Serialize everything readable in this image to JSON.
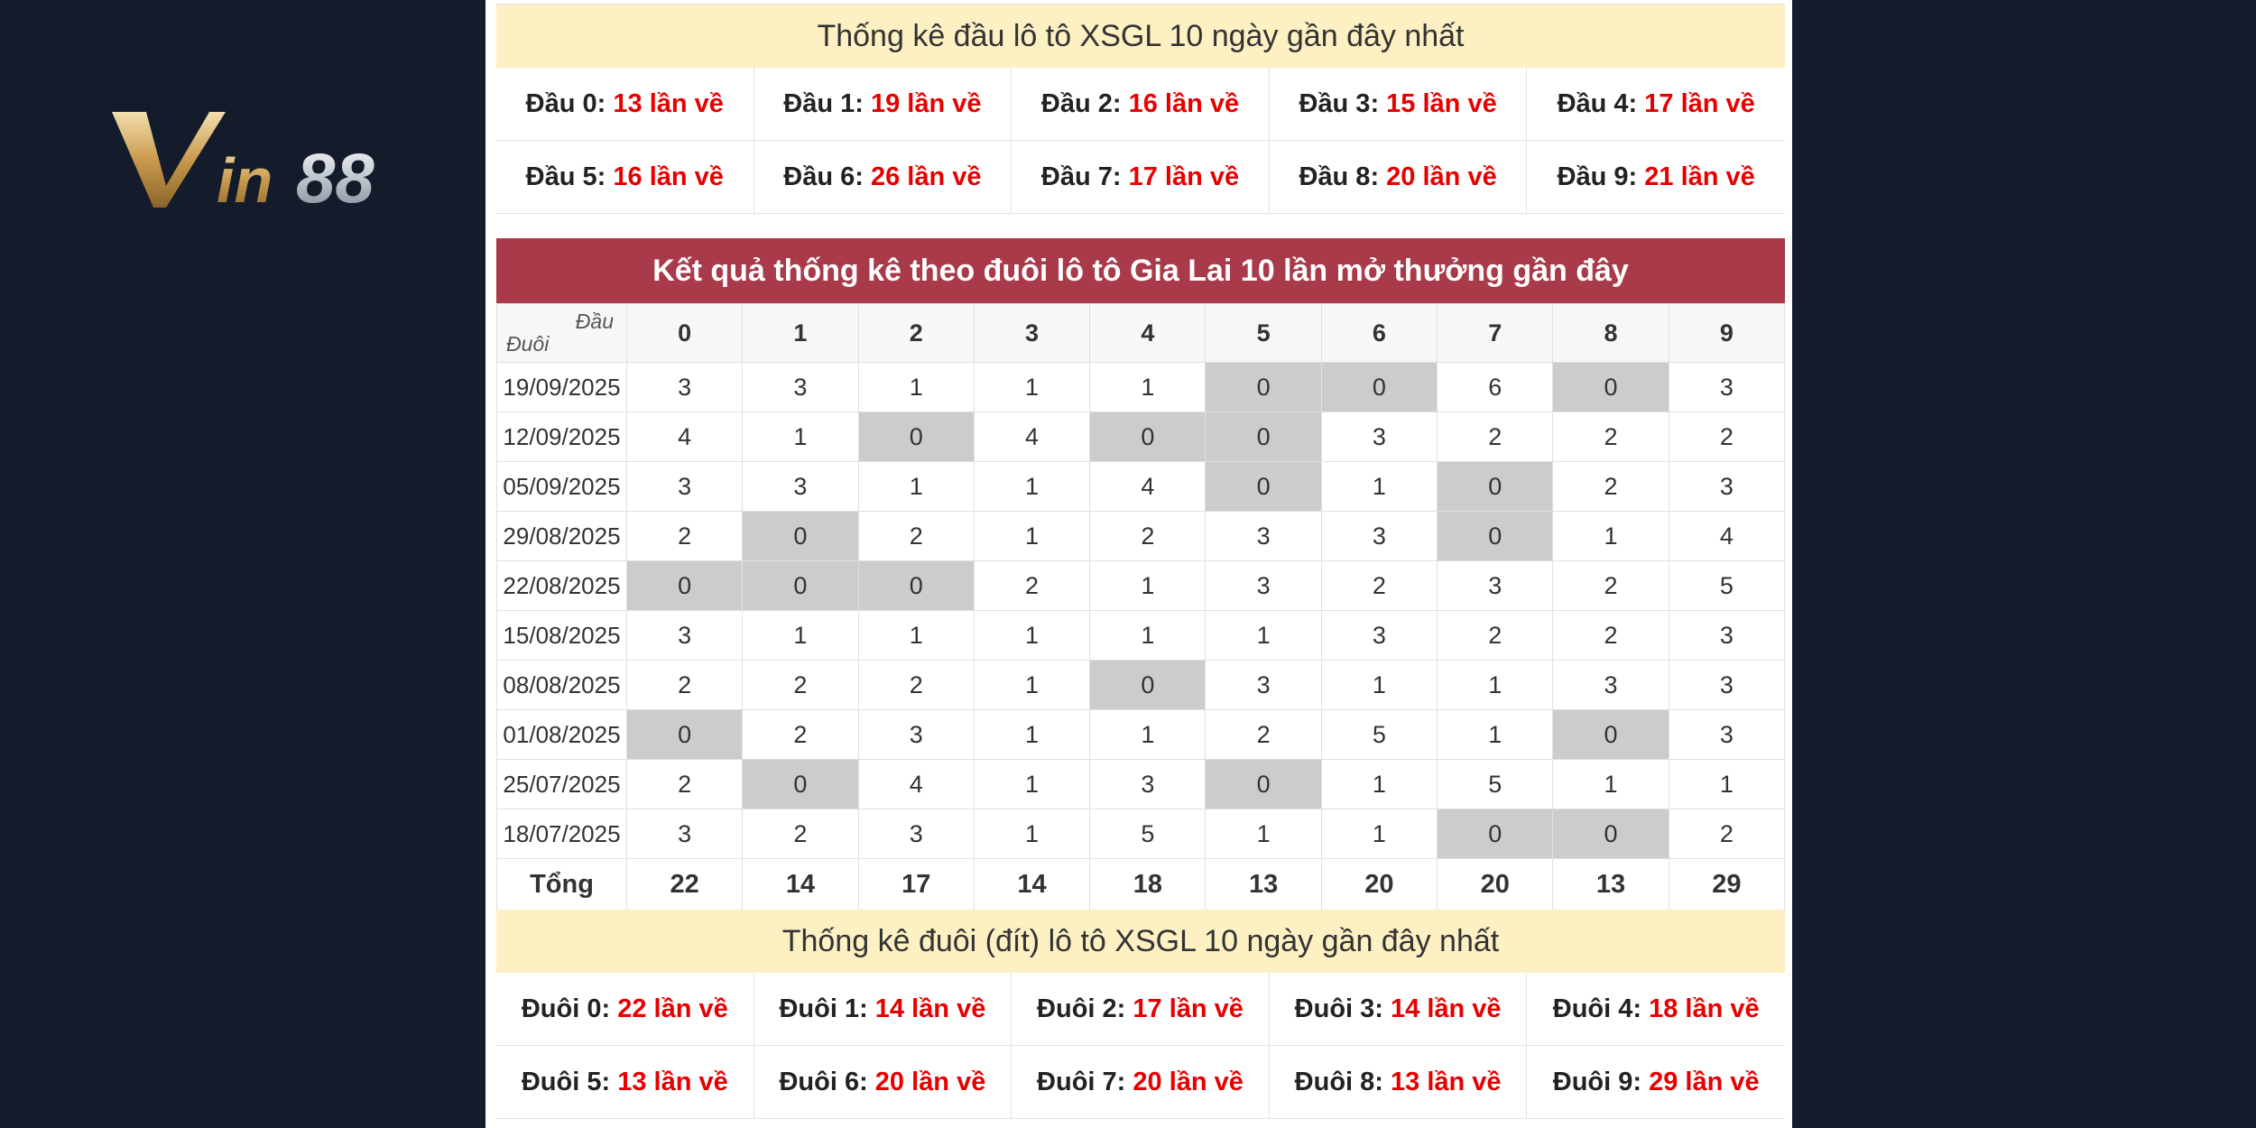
{
  "logo": {
    "text": "Vin88"
  },
  "dau_summary": {
    "caption": "Thống kê đầu lô tô XSGL 10 ngày gần đây nhất",
    "items": [
      {
        "label": "Đầu 0:",
        "value": "13 lần về"
      },
      {
        "label": "Đầu 1:",
        "value": "19 lần về"
      },
      {
        "label": "Đầu 2:",
        "value": "16 lần về"
      },
      {
        "label": "Đầu 3:",
        "value": "15 lần về"
      },
      {
        "label": "Đầu 4:",
        "value": "17 lần về"
      },
      {
        "label": "Đầu 5:",
        "value": "16 lần về"
      },
      {
        "label": "Đầu 6:",
        "value": "26 lần về"
      },
      {
        "label": "Đầu 7:",
        "value": "17 lần về"
      },
      {
        "label": "Đầu 8:",
        "value": "20 lần về"
      },
      {
        "label": "Đầu 9:",
        "value": "21 lần về"
      }
    ]
  },
  "duoi_table": {
    "title": "Kết quả thống kê theo đuôi lô tô Gia Lai 10 lần mở thưởng gần đây",
    "corner_top": "Đầu",
    "corner_bottom": "Đuôi",
    "columns": [
      "0",
      "1",
      "2",
      "3",
      "4",
      "5",
      "6",
      "7",
      "8",
      "9"
    ],
    "rows": [
      {
        "date": "19/09/2025",
        "values": [
          3,
          3,
          1,
          1,
          1,
          0,
          0,
          6,
          0,
          3
        ]
      },
      {
        "date": "12/09/2025",
        "values": [
          4,
          1,
          0,
          4,
          0,
          0,
          3,
          2,
          2,
          2
        ]
      },
      {
        "date": "05/09/2025",
        "values": [
          3,
          3,
          1,
          1,
          4,
          0,
          1,
          0,
          2,
          3
        ]
      },
      {
        "date": "29/08/2025",
        "values": [
          2,
          0,
          2,
          1,
          2,
          3,
          3,
          0,
          1,
          4
        ]
      },
      {
        "date": "22/08/2025",
        "values": [
          0,
          0,
          0,
          2,
          1,
          3,
          2,
          3,
          2,
          5
        ]
      },
      {
        "date": "15/08/2025",
        "values": [
          3,
          1,
          1,
          1,
          1,
          1,
          3,
          2,
          2,
          3
        ]
      },
      {
        "date": "08/08/2025",
        "values": [
          2,
          2,
          2,
          1,
          0,
          3,
          1,
          1,
          3,
          3
        ]
      },
      {
        "date": "01/08/2025",
        "values": [
          0,
          2,
          3,
          1,
          1,
          2,
          5,
          1,
          0,
          3
        ]
      },
      {
        "date": "25/07/2025",
        "values": [
          2,
          0,
          4,
          1,
          3,
          0,
          1,
          5,
          1,
          1
        ]
      },
      {
        "date": "18/07/2025",
        "values": [
          3,
          2,
          3,
          1,
          5,
          1,
          1,
          0,
          0,
          2
        ]
      }
    ],
    "total_label": "Tổng",
    "totals": [
      22,
      14,
      17,
      14,
      18,
      13,
      20,
      20,
      13,
      29
    ],
    "zero_highlight_color": "#cccccc",
    "header_color": "#a83a4a"
  },
  "duoi_summary": {
    "caption": "Thống kê đuôi (đít) lô tô XSGL 10 ngày gần đây nhất",
    "items": [
      {
        "label": "Đuôi 0:",
        "value": "22 lần về"
      },
      {
        "label": "Đuôi 1:",
        "value": "14 lần về"
      },
      {
        "label": "Đuôi 2:",
        "value": "17 lần về"
      },
      {
        "label": "Đuôi 3:",
        "value": "14 lần về"
      },
      {
        "label": "Đuôi 4:",
        "value": "18 lần về"
      },
      {
        "label": "Đuôi 5:",
        "value": "13 lần về"
      },
      {
        "label": "Đuôi 6:",
        "value": "20 lần về"
      },
      {
        "label": "Đuôi 7:",
        "value": "20 lần về"
      },
      {
        "label": "Đuôi 8:",
        "value": "13 lần về"
      },
      {
        "label": "Đuôi 9:",
        "value": "29 lần về"
      }
    ]
  }
}
